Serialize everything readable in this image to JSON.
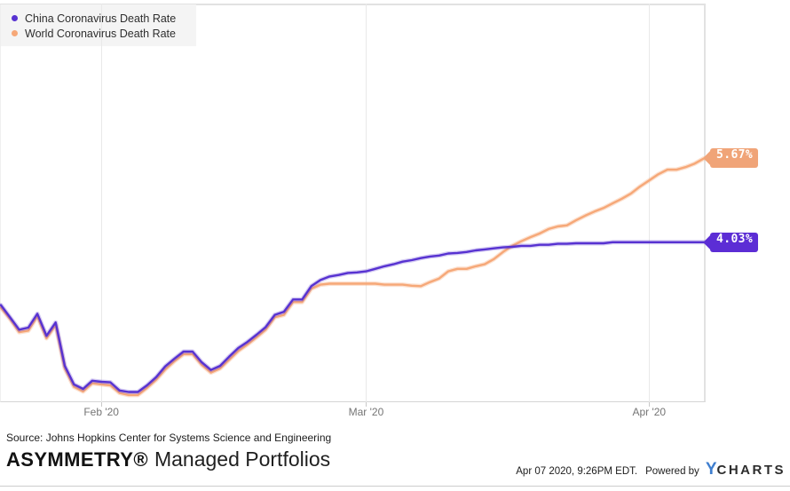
{
  "chart_data": {
    "type": "line",
    "title": "",
    "grid": "vertical-only",
    "legend_position": "top-left",
    "ylim": [
      0.9,
      8.7
    ],
    "x": [
      "2020-01-21",
      "2020-01-22",
      "2020-01-23",
      "2020-01-24",
      "2020-01-25",
      "2020-01-26",
      "2020-01-27",
      "2020-01-28",
      "2020-01-29",
      "2020-01-30",
      "2020-01-31",
      "2020-02-01",
      "2020-02-02",
      "2020-02-03",
      "2020-02-04",
      "2020-02-05",
      "2020-02-06",
      "2020-02-07",
      "2020-02-08",
      "2020-02-09",
      "2020-02-10",
      "2020-02-11",
      "2020-02-12",
      "2020-02-13",
      "2020-02-14",
      "2020-02-15",
      "2020-02-16",
      "2020-02-17",
      "2020-02-18",
      "2020-02-19",
      "2020-02-20",
      "2020-02-21",
      "2020-02-22",
      "2020-02-23",
      "2020-02-24",
      "2020-02-25",
      "2020-02-26",
      "2020-02-27",
      "2020-02-28",
      "2020-02-29",
      "2020-03-01",
      "2020-03-02",
      "2020-03-03",
      "2020-03-04",
      "2020-03-05",
      "2020-03-06",
      "2020-03-07",
      "2020-03-08",
      "2020-03-09",
      "2020-03-10",
      "2020-03-11",
      "2020-03-12",
      "2020-03-13",
      "2020-03-14",
      "2020-03-15",
      "2020-03-16",
      "2020-03-17",
      "2020-03-18",
      "2020-03-19",
      "2020-03-20",
      "2020-03-21",
      "2020-03-22",
      "2020-03-23",
      "2020-03-24",
      "2020-03-25",
      "2020-03-26",
      "2020-03-27",
      "2020-03-28",
      "2020-03-29",
      "2020-03-30",
      "2020-03-31",
      "2020-04-01",
      "2020-04-02",
      "2020-04-03",
      "2020-04-04",
      "2020-04-05",
      "2020-04-06",
      "2020-04-07"
    ],
    "x_ticks": [
      {
        "label": "Feb '20",
        "index": 11
      },
      {
        "label": "Mar '20",
        "index": 40
      },
      {
        "label": "Apr '20",
        "index": 71
      }
    ],
    "series": [
      {
        "name": "China Coronavirus Death Rate",
        "color": "#5732d1",
        "glow": "rgba(87,50,209,0.25)",
        "tag_color": "#5c2dd5",
        "end_label": "4.03%",
        "values": [
          2.8,
          2.56,
          2.32,
          2.36,
          2.63,
          2.2,
          2.46,
          1.61,
          1.25,
          1.16,
          1.32,
          1.3,
          1.29,
          1.13,
          1.1,
          1.1,
          1.23,
          1.39,
          1.6,
          1.75,
          1.89,
          1.89,
          1.68,
          1.53,
          1.61,
          1.79,
          1.96,
          2.08,
          2.22,
          2.37,
          2.61,
          2.67,
          2.91,
          2.91,
          3.17,
          3.29,
          3.36,
          3.39,
          3.43,
          3.44,
          3.46,
          3.51,
          3.56,
          3.6,
          3.65,
          3.68,
          3.72,
          3.75,
          3.77,
          3.81,
          3.82,
          3.84,
          3.87,
          3.89,
          3.91,
          3.93,
          3.94,
          3.96,
          3.96,
          3.98,
          3.98,
          4.0,
          4.0,
          4.01,
          4.01,
          4.01,
          4.01,
          4.03,
          4.03,
          4.03,
          4.03,
          4.03,
          4.03,
          4.03,
          4.03,
          4.03,
          4.03,
          4.03
        ]
      },
      {
        "name": "World Coronavirus Death Rate",
        "color": "#f6a878",
        "glow": "rgba(246,168,120,0.35)",
        "tag_color": "#f0a478",
        "end_label": "5.67%",
        "values": [
          2.75,
          2.53,
          2.27,
          2.3,
          2.58,
          2.15,
          2.41,
          1.56,
          1.2,
          1.11,
          1.27,
          1.25,
          1.23,
          1.08,
          1.04,
          1.04,
          1.18,
          1.34,
          1.54,
          1.7,
          1.84,
          1.84,
          1.63,
          1.48,
          1.56,
          1.73,
          1.9,
          2.03,
          2.17,
          2.32,
          2.56,
          2.61,
          2.86,
          2.86,
          3.12,
          3.2,
          3.22,
          3.22,
          3.22,
          3.22,
          3.22,
          3.22,
          3.2,
          3.2,
          3.2,
          3.18,
          3.17,
          3.25,
          3.32,
          3.46,
          3.51,
          3.51,
          3.56,
          3.6,
          3.7,
          3.84,
          3.96,
          4.05,
          4.13,
          4.2,
          4.29,
          4.34,
          4.36,
          4.46,
          4.55,
          4.63,
          4.7,
          4.79,
          4.88,
          4.98,
          5.12,
          5.24,
          5.36,
          5.45,
          5.45,
          5.5,
          5.57,
          5.67
        ]
      }
    ]
  },
  "footer": {
    "source": "Source: Johns Hopkins Center for Systems Science and Engineering",
    "brand_bold": "ASYMMETRY®",
    "brand_rest": "Managed Portfolios",
    "timestamp": "Apr 07 2020, 9:26PM EDT.",
    "powered_by": "Powered by",
    "logo_y": "Y",
    "logo_charts": "CHARTS"
  },
  "colors": {
    "plot_border": "#e2e2e2",
    "gridline": "#e9e9e9",
    "axis_label": "#757575",
    "legend_bg": "#f4f4f4",
    "ycharts_blue": "#3e7ecf"
  }
}
